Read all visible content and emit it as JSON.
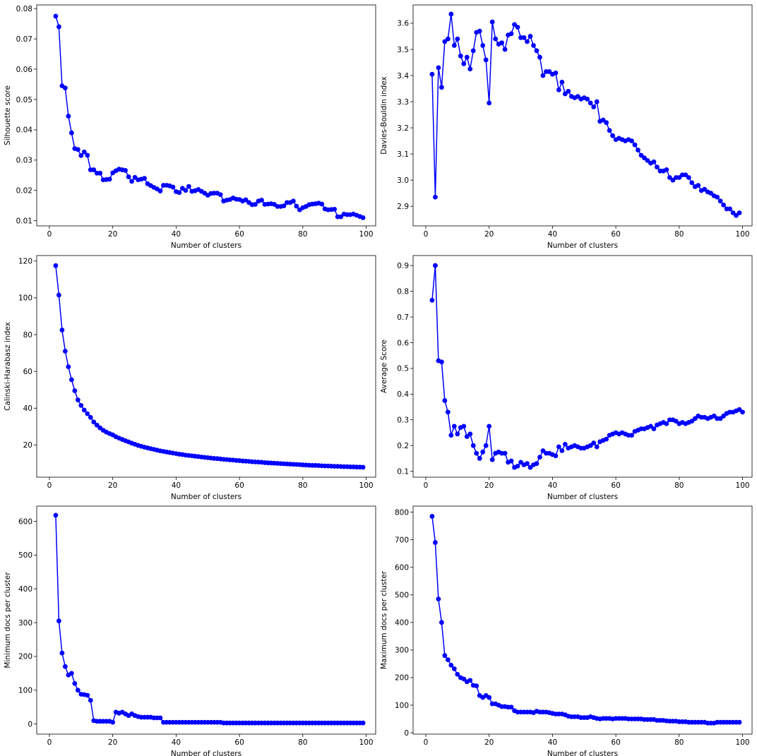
{
  "chart_data": [
    {
      "type": "line",
      "xlabel": "Number of clusters",
      "ylabel": "Silhouette score",
      "xlim": [
        -4,
        103
      ],
      "ylim": [
        0.0083,
        0.0812
      ],
      "xticks": [
        0,
        20,
        40,
        60,
        80,
        100
      ],
      "yticks": [
        0.01,
        0.02,
        0.03,
        0.04,
        0.05,
        0.06,
        0.07,
        0.08
      ],
      "grid": false,
      "series": [
        {
          "color": "#0000ff",
          "marker": "circle",
          "x_start": 2,
          "x_step": 1,
          "y": [
            0.0775,
            0.074,
            0.0545,
            0.0538,
            0.0445,
            0.039,
            0.0338,
            0.0335,
            0.0315,
            0.0327,
            0.0316,
            0.0268,
            0.0268,
            0.0257,
            0.0257,
            0.0235,
            0.0236,
            0.0237,
            0.0258,
            0.0265,
            0.027,
            0.0268,
            0.0266,
            0.0245,
            0.023,
            0.0243,
            0.0235,
            0.0237,
            0.024,
            0.0222,
            0.0216,
            0.021,
            0.0205,
            0.0198,
            0.0217,
            0.0217,
            0.0215,
            0.0211,
            0.0196,
            0.0193,
            0.0207,
            0.02,
            0.0213,
            0.0197,
            0.0199,
            0.0203,
            0.0197,
            0.0191,
            0.0184,
            0.019,
            0.0191,
            0.0191,
            0.0186,
            0.0165,
            0.0168,
            0.017,
            0.0175,
            0.0171,
            0.017,
            0.0165,
            0.0169,
            0.016,
            0.0153,
            0.0154,
            0.0165,
            0.0168,
            0.0154,
            0.0155,
            0.0156,
            0.0154,
            0.0147,
            0.0147,
            0.0149,
            0.016,
            0.016,
            0.0165,
            0.0148,
            0.0136,
            0.0143,
            0.0147,
            0.0153,
            0.0155,
            0.0156,
            0.0158,
            0.0155,
            0.0139,
            0.0136,
            0.0137,
            0.0138,
            0.0113,
            0.0113,
            0.0122,
            0.012,
            0.012,
            0.0122,
            0.0118,
            0.0114,
            0.011
          ]
        }
      ]
    },
    {
      "type": "line",
      "xlabel": "Number of clusters",
      "ylabel": "Davies-Bouldin index",
      "xlim": [
        -4,
        103
      ],
      "ylim": [
        2.825,
        3.67
      ],
      "xticks": [
        0,
        20,
        40,
        60,
        80,
        100
      ],
      "yticks": [
        2.9,
        3.0,
        3.1,
        3.2,
        3.3,
        3.4,
        3.5,
        3.6
      ],
      "grid": false,
      "series": [
        {
          "color": "#0000ff",
          "marker": "circle",
          "x_start": 2,
          "x_step": 1,
          "y": [
            3.405,
            2.935,
            3.43,
            3.355,
            3.53,
            3.54,
            3.635,
            3.515,
            3.54,
            3.475,
            3.445,
            3.47,
            3.425,
            3.495,
            3.565,
            3.57,
            3.515,
            3.46,
            3.295,
            3.605,
            3.54,
            3.52,
            3.525,
            3.5,
            3.555,
            3.56,
            3.595,
            3.585,
            3.545,
            3.545,
            3.53,
            3.55,
            3.515,
            3.495,
            3.47,
            3.4,
            3.415,
            3.415,
            3.405,
            3.41,
            3.345,
            3.375,
            3.33,
            3.34,
            3.32,
            3.315,
            3.32,
            3.31,
            3.315,
            3.31,
            3.295,
            3.28,
            3.3,
            3.225,
            3.23,
            3.22,
            3.19,
            3.17,
            3.155,
            3.16,
            3.155,
            3.15,
            3.155,
            3.15,
            3.135,
            3.115,
            3.095,
            3.085,
            3.075,
            3.065,
            3.07,
            3.05,
            3.035,
            3.035,
            3.04,
            3.01,
            3.0,
            3.01,
            3.01,
            3.02,
            3.02,
            3.01,
            2.99,
            2.975,
            2.98,
            2.96,
            2.965,
            2.955,
            2.95,
            2.94,
            2.935,
            2.92,
            2.905,
            2.89,
            2.89,
            2.875,
            2.865,
            2.875
          ]
        }
      ]
    },
    {
      "type": "line",
      "xlabel": "Number of clusters",
      "ylabel": "Calinski-Harabasz index",
      "xlim": [
        -4,
        103
      ],
      "ylim": [
        2.5,
        123
      ],
      "xticks": [
        0,
        20,
        40,
        60,
        80,
        100
      ],
      "yticks": [
        20,
        40,
        60,
        80,
        100,
        120
      ],
      "grid": false,
      "series": [
        {
          "color": "#0000ff",
          "marker": "circle",
          "x_start": 2,
          "x_step": 1,
          "y": [
            117.5,
            101.5,
            82.5,
            71.0,
            62.5,
            55.5,
            49.5,
            44.5,
            41.5,
            39.0,
            37.0,
            35.0,
            32.5,
            30.8,
            29.3,
            28.0,
            27.0,
            26.2,
            25.5,
            24.5,
            23.7,
            23.0,
            22.3,
            21.7,
            21.0,
            20.4,
            19.8,
            19.3,
            18.8,
            18.4,
            18.0,
            17.6,
            17.2,
            16.8,
            16.5,
            16.2,
            15.9,
            15.6,
            15.3,
            15.0,
            14.8,
            14.5,
            14.3,
            14.1,
            13.9,
            13.7,
            13.5,
            13.3,
            13.1,
            12.9,
            12.7,
            12.6,
            12.4,
            12.2,
            12.1,
            11.9,
            11.8,
            11.6,
            11.5,
            11.3,
            11.2,
            11.1,
            10.9,
            10.8,
            10.7,
            10.6,
            10.4,
            10.3,
            10.2,
            10.1,
            10.0,
            9.9,
            9.8,
            9.7,
            9.6,
            9.5,
            9.4,
            9.3,
            9.2,
            9.1,
            9.0,
            8.9,
            8.9,
            8.8,
            8.7,
            8.6,
            8.6,
            8.5,
            8.4,
            8.4,
            8.3,
            8.2,
            8.2,
            8.1,
            8.1,
            8.0,
            8.0,
            7.9
          ]
        }
      ]
    },
    {
      "type": "line",
      "xlabel": "Number of clusters",
      "ylabel": "Average Score",
      "xlim": [
        -4,
        103
      ],
      "ylim": [
        0.077,
        0.939
      ],
      "xticks": [
        0,
        20,
        40,
        60,
        80,
        100
      ],
      "yticks": [
        0.1,
        0.2,
        0.3,
        0.4,
        0.5,
        0.6,
        0.7,
        0.8,
        0.9
      ],
      "grid": false,
      "series": [
        {
          "color": "#0000ff",
          "marker": "circle",
          "x_start": 2,
          "x_step": 1,
          "y": [
            0.765,
            0.9,
            0.53,
            0.525,
            0.375,
            0.33,
            0.24,
            0.275,
            0.245,
            0.27,
            0.275,
            0.235,
            0.245,
            0.2,
            0.17,
            0.15,
            0.175,
            0.2,
            0.275,
            0.145,
            0.17,
            0.175,
            0.17,
            0.17,
            0.135,
            0.14,
            0.115,
            0.12,
            0.135,
            0.125,
            0.13,
            0.115,
            0.125,
            0.13,
            0.155,
            0.18,
            0.17,
            0.17,
            0.165,
            0.16,
            0.195,
            0.18,
            0.205,
            0.19,
            0.195,
            0.2,
            0.195,
            0.19,
            0.19,
            0.195,
            0.2,
            0.21,
            0.195,
            0.215,
            0.22,
            0.225,
            0.24,
            0.245,
            0.25,
            0.245,
            0.25,
            0.245,
            0.24,
            0.24,
            0.255,
            0.26,
            0.265,
            0.265,
            0.27,
            0.275,
            0.265,
            0.28,
            0.285,
            0.29,
            0.285,
            0.3,
            0.3,
            0.295,
            0.285,
            0.29,
            0.285,
            0.29,
            0.295,
            0.305,
            0.315,
            0.31,
            0.31,
            0.305,
            0.31,
            0.315,
            0.305,
            0.305,
            0.315,
            0.325,
            0.33,
            0.33,
            0.335,
            0.34,
            0.33
          ]
        }
      ]
    },
    {
      "type": "line",
      "xlabel": "Number of clusters",
      "ylabel": "Minimum docs per cluster",
      "xlim": [
        -4,
        103
      ],
      "ylim": [
        -30,
        645
      ],
      "xticks": [
        0,
        20,
        40,
        60,
        80,
        100
      ],
      "yticks": [
        0,
        100,
        200,
        300,
        400,
        500,
        600
      ],
      "grid": false,
      "series": [
        {
          "color": "#0000ff",
          "marker": "circle",
          "x_start": 2,
          "x_step": 1,
          "y": [
            618,
            305,
            210,
            170,
            145,
            150,
            120,
            100,
            88,
            87,
            85,
            70,
            10,
            8,
            8,
            8,
            8,
            8,
            5,
            35,
            32,
            35,
            30,
            25,
            30,
            25,
            22,
            20,
            20,
            20,
            20,
            18,
            18,
            18,
            5,
            5,
            5,
            5,
            5,
            5,
            5,
            5,
            5,
            5,
            5,
            5,
            5,
            5,
            5,
            5,
            5,
            5,
            5,
            3,
            3,
            3,
            3,
            3,
            3,
            3,
            3,
            3,
            3,
            3,
            3,
            3,
            3,
            3,
            3,
            3,
            3,
            3,
            3,
            3,
            3,
            3,
            3,
            3,
            3,
            3,
            3,
            3,
            3,
            3,
            3,
            3,
            3,
            3,
            3,
            3,
            3,
            3,
            3,
            3,
            3,
            3,
            3,
            3
          ]
        }
      ]
    },
    {
      "type": "line",
      "xlabel": "Number of clusters",
      "ylabel": "Maximum docs per cluster",
      "xlim": [
        -4,
        103
      ],
      "ylim": [
        -5,
        822
      ],
      "xticks": [
        0,
        20,
        40,
        60,
        80,
        100
      ],
      "yticks": [
        0,
        100,
        200,
        300,
        400,
        500,
        600,
        700,
        800
      ],
      "grid": false,
      "series": [
        {
          "color": "#0000ff",
          "marker": "circle",
          "x_start": 2,
          "x_step": 1,
          "y": [
            785,
            690,
            485,
            400,
            280,
            265,
            245,
            232,
            212,
            200,
            195,
            185,
            190,
            172,
            170,
            135,
            128,
            135,
            128,
            105,
            105,
            100,
            95,
            95,
            93,
            93,
            80,
            75,
            75,
            75,
            75,
            75,
            73,
            78,
            75,
            75,
            75,
            73,
            70,
            68,
            68,
            68,
            65,
            60,
            58,
            58,
            58,
            55,
            55,
            55,
            58,
            55,
            52,
            50,
            52,
            52,
            52,
            50,
            52,
            52,
            52,
            52,
            50,
            50,
            50,
            50,
            50,
            48,
            48,
            48,
            48,
            45,
            45,
            45,
            43,
            42,
            42,
            42,
            40,
            40,
            40,
            38,
            38,
            38,
            38,
            38,
            38,
            35,
            35,
            35,
            38,
            38,
            38,
            38,
            38,
            38,
            38,
            38
          ]
        }
      ]
    }
  ]
}
